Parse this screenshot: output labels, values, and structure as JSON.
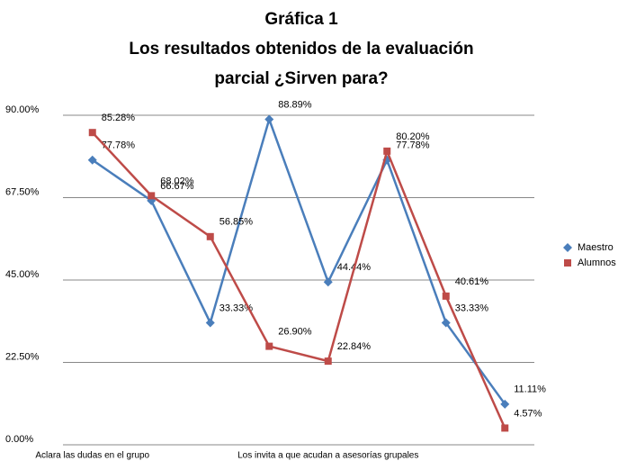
{
  "chart_data": {
    "type": "line",
    "title": [
      "Gráfica 1",
      "Los resultados obtenidos de la evaluación",
      "parcial ¿Sirven para?"
    ],
    "categories": [
      "Aclara las dudas en el grupo",
      null,
      null,
      null,
      "Los invita a que acudan a asesorías grupales",
      null,
      null,
      null
    ],
    "series": [
      {
        "name": "Maestro",
        "color": "#4a7ebb",
        "marker": "diamond",
        "values": [
          77.78,
          66.67,
          33.33,
          88.89,
          44.44,
          77.78,
          33.33,
          11.11
        ],
        "value_labels": [
          "77.78%",
          "66.67%",
          "33.33%",
          "88.89%",
          "44.44%",
          "77.78%",
          "33.33%",
          "11.11%"
        ]
      },
      {
        "name": "Alumnos",
        "color": "#be4b48",
        "marker": "square",
        "values": [
          85.28,
          68.02,
          56.85,
          26.9,
          22.84,
          80.2,
          40.61,
          4.57
        ],
        "value_labels": [
          "85.28%",
          "68.02%",
          "56.85%",
          "26.90%",
          "22.84%",
          "80.20%",
          "40.61%",
          "4.57%"
        ]
      }
    ],
    "ylim": [
      0,
      90
    ],
    "yticks": [
      {
        "value": 0,
        "label": "0.00%"
      },
      {
        "value": 22.5,
        "label": "22.50%"
      },
      {
        "value": 45,
        "label": "45.00%"
      },
      {
        "value": 67.5,
        "label": "67.50%"
      },
      {
        "value": 90,
        "label": "90.00%"
      }
    ],
    "grid": true,
    "legend": "right"
  }
}
